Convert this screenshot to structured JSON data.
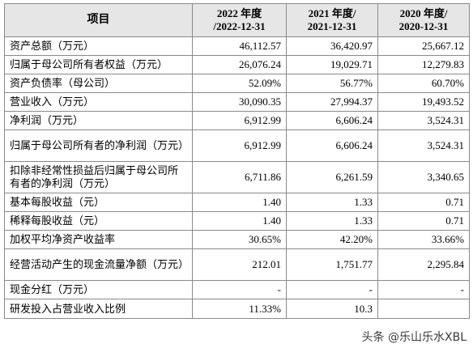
{
  "table": {
    "header": {
      "item": "项目",
      "col1_l1": "2022 年度",
      "col1_l2": "/2022-12-31",
      "col2_l1": "2021 年度/",
      "col2_l2": "2021-12-31",
      "col3_l1": "2020 年度/",
      "col3_l2": "2020-12-31"
    },
    "rows": [
      {
        "label": "资产总额（万元）",
        "v2022": "46,112.57",
        "v2021": "36,420.97",
        "v2020": "25,667.12"
      },
      {
        "label": "归属于母公司所有者权益（万元）",
        "v2022": "26,076.24",
        "v2021": "19,029.71",
        "v2020": "12,279.83"
      },
      {
        "label": "资产负债率（母公司）",
        "v2022": "52.09%",
        "v2021": "56.77%",
        "v2020": "60.70%"
      },
      {
        "label": "营业收入（万元）",
        "v2022": "30,090.35",
        "v2021": "27,994.37",
        "v2020": "19,493.52"
      },
      {
        "label": "净利润（万元）",
        "v2022": "6,912.99",
        "v2021": "6,606.24",
        "v2020": "3,524.31"
      },
      {
        "label": "归属于母公司所有者的净利润（万元）",
        "v2022": "6,912.99",
        "v2021": "6,606.24",
        "v2020": "3,524.31"
      },
      {
        "label": "扣除非经常性损益后归属于母公司所有者的净利润（万元）",
        "v2022": "6,711.86",
        "v2021": "6,261.59",
        "v2020": "3,340.65"
      },
      {
        "label": "基本每股收益（元）",
        "v2022": "1.40",
        "v2021": "1.33",
        "v2020": "0.71"
      },
      {
        "label": "稀释每股收益（元）",
        "v2022": "1.40",
        "v2021": "1.33",
        "v2020": "0.71"
      },
      {
        "label": "加权平均净资产收益率",
        "v2022": "30.65%",
        "v2021": "42.20%",
        "v2020": "33.66%"
      },
      {
        "label": "经营活动产生的现金流量净额（万元）",
        "v2022": "212.01",
        "v2021": "1,751.77",
        "v2020": "2,295.84"
      },
      {
        "label": "现金分红（万元）",
        "v2022": "-",
        "v2021": "-",
        "v2020": "-"
      },
      {
        "label": "研发投入占营业收入比例",
        "v2022": "11.33%",
        "v2021": "10.3",
        "v2020": ""
      }
    ]
  },
  "watermark": "头条 @乐山乐水XBL"
}
